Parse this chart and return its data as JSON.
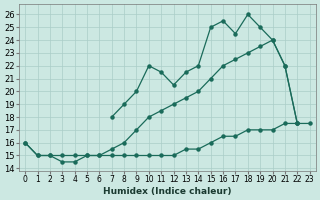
{
  "bg_color": "#cce8e2",
  "grid_color": "#aacdc8",
  "line_color": "#1a6b5a",
  "xlabel": "Humidex (Indice chaleur)",
  "xlim": [
    -0.5,
    23.5
  ],
  "ylim": [
    13.8,
    26.8
  ],
  "xticks": [
    0,
    1,
    2,
    3,
    4,
    5,
    6,
    7,
    8,
    9,
    10,
    11,
    12,
    13,
    14,
    15,
    16,
    17,
    18,
    19,
    20,
    21,
    22,
    23
  ],
  "yticks": [
    14,
    15,
    16,
    17,
    18,
    19,
    20,
    21,
    22,
    23,
    24,
    25,
    26
  ],
  "line_bottom_x": [
    0,
    1,
    2,
    3,
    4,
    5,
    6,
    7,
    8,
    9,
    10,
    11,
    12,
    13,
    14,
    15,
    16,
    17,
    18,
    19,
    20,
    21,
    22,
    23
  ],
  "line_bottom_y": [
    16,
    15,
    15,
    14.5,
    14.5,
    15,
    15,
    15,
    15,
    15,
    15,
    15,
    15,
    15.5,
    15.5,
    16,
    16.5,
    16.5,
    17,
    17,
    17,
    17.5,
    17.5,
    17.5
  ],
  "line_diag_x": [
    0,
    1,
    2,
    3,
    4,
    5,
    6,
    7,
    8,
    9,
    10,
    11,
    12,
    13,
    14,
    15,
    16,
    17,
    18,
    19,
    20,
    21,
    22
  ],
  "line_diag_y": [
    16,
    15,
    15,
    15,
    15,
    15,
    15,
    15.5,
    16,
    17,
    18,
    18.5,
    19,
    19.5,
    20,
    21,
    22,
    22.5,
    23,
    23.5,
    24,
    22,
    17.5
  ],
  "line_jagged_x": [
    7,
    8,
    9,
    10,
    11,
    12,
    13,
    14,
    15,
    16,
    17,
    18,
    19,
    20,
    21,
    22
  ],
  "line_jagged_y": [
    18,
    19,
    20,
    22,
    21.5,
    20.5,
    21.5,
    22,
    25,
    25.5,
    24.5,
    26,
    25,
    24,
    22,
    17.5
  ]
}
